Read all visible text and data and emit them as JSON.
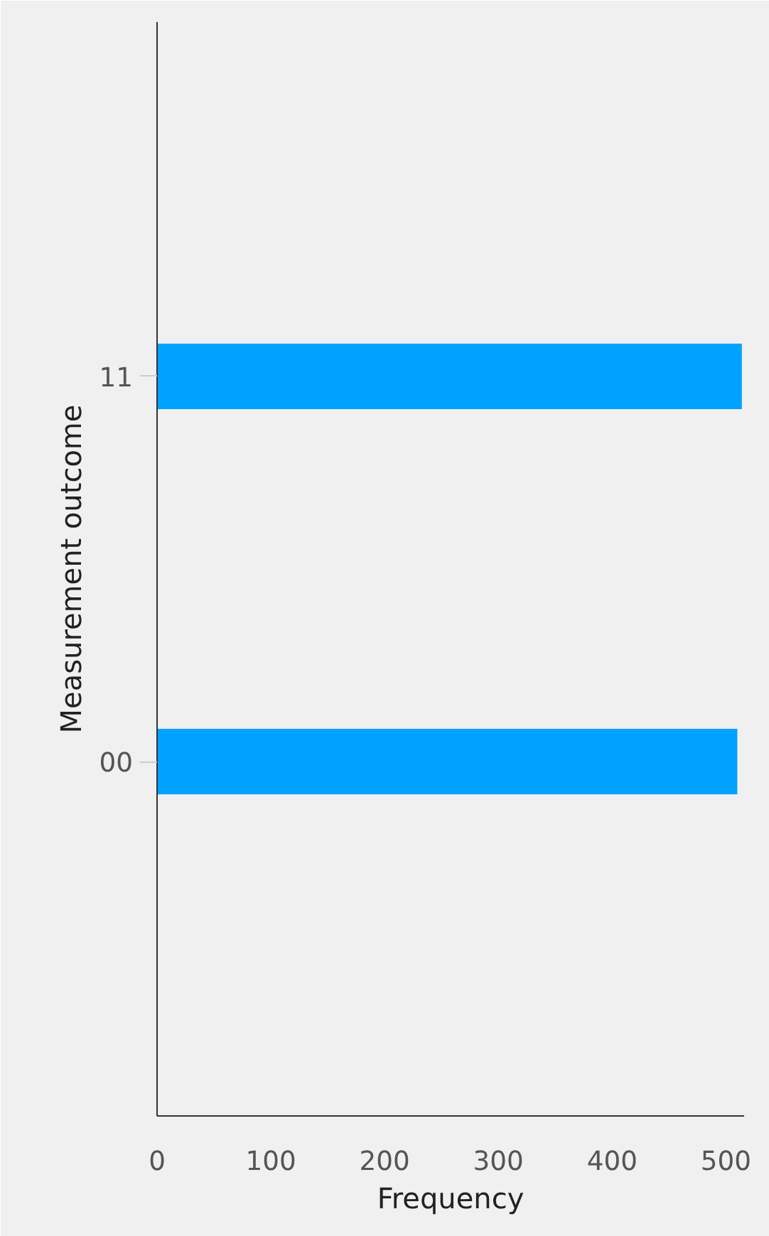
{
  "chart_data": {
    "type": "bar",
    "orientation": "horizontal",
    "xlabel": "Frequency",
    "ylabel": "Measurement outcome",
    "categories": [
      "11",
      "00"
    ],
    "values": [
      514,
      510
    ],
    "color": "#00a2ff",
    "xlim": [
      0,
      516
    ],
    "xticks": [
      0,
      100,
      200,
      300,
      400,
      500
    ],
    "grid": false
  }
}
